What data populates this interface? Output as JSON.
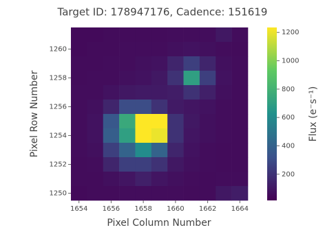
{
  "chart_data": {
    "type": "heatmap",
    "title": "Target ID: 178947176, Cadence: 151619",
    "x_label": "Pixel Column Number",
    "y_label": "Pixel Row Number",
    "colorbar_label": "Flux (e⁻s⁻¹)",
    "colormap": "viridis",
    "x": [
      1654,
      1655,
      1656,
      1657,
      1658,
      1659,
      1660,
      1661,
      1662,
      1663,
      1664
    ],
    "y": [
      1261,
      1260,
      1259,
      1258,
      1257,
      1256,
      1255,
      1254,
      1253,
      1252,
      1251,
      1250
    ],
    "values": [
      [
        50,
        50,
        55,
        55,
        55,
        55,
        60,
        60,
        60,
        100,
        60
      ],
      [
        50,
        55,
        55,
        60,
        60,
        60,
        70,
        80,
        70,
        60,
        55
      ],
      [
        55,
        55,
        60,
        60,
        70,
        80,
        150,
        250,
        150,
        70,
        60
      ],
      [
        55,
        60,
        60,
        70,
        80,
        100,
        200,
        700,
        250,
        80,
        60
      ],
      [
        60,
        60,
        80,
        100,
        110,
        110,
        120,
        200,
        130,
        70,
        60
      ],
      [
        60,
        70,
        150,
        300,
        300,
        200,
        110,
        90,
        80,
        60,
        55
      ],
      [
        60,
        80,
        350,
        750,
        1250,
        1250,
        200,
        100,
        70,
        60,
        55
      ],
      [
        60,
        80,
        380,
        700,
        1250,
        1200,
        200,
        90,
        70,
        60,
        55
      ],
      [
        60,
        70,
        250,
        400,
        600,
        400,
        150,
        80,
        60,
        55,
        55
      ],
      [
        55,
        60,
        150,
        250,
        250,
        200,
        100,
        70,
        60,
        55,
        55
      ],
      [
        55,
        55,
        70,
        90,
        130,
        90,
        70,
        60,
        55,
        60,
        60
      ],
      [
        50,
        55,
        55,
        60,
        60,
        60,
        60,
        55,
        55,
        100,
        120
      ]
    ],
    "xlim": [
      1653.5,
      1664.5
    ],
    "ylim": [
      1249.5,
      1261.5
    ],
    "xticks": [
      1654,
      1656,
      1658,
      1660,
      1662,
      1664
    ],
    "yticks": [
      1250,
      1252,
      1254,
      1256,
      1258,
      1260
    ],
    "clim": [
      15,
      1235
    ],
    "cticks": [
      200,
      400,
      600,
      800,
      1000,
      1200
    ]
  }
}
